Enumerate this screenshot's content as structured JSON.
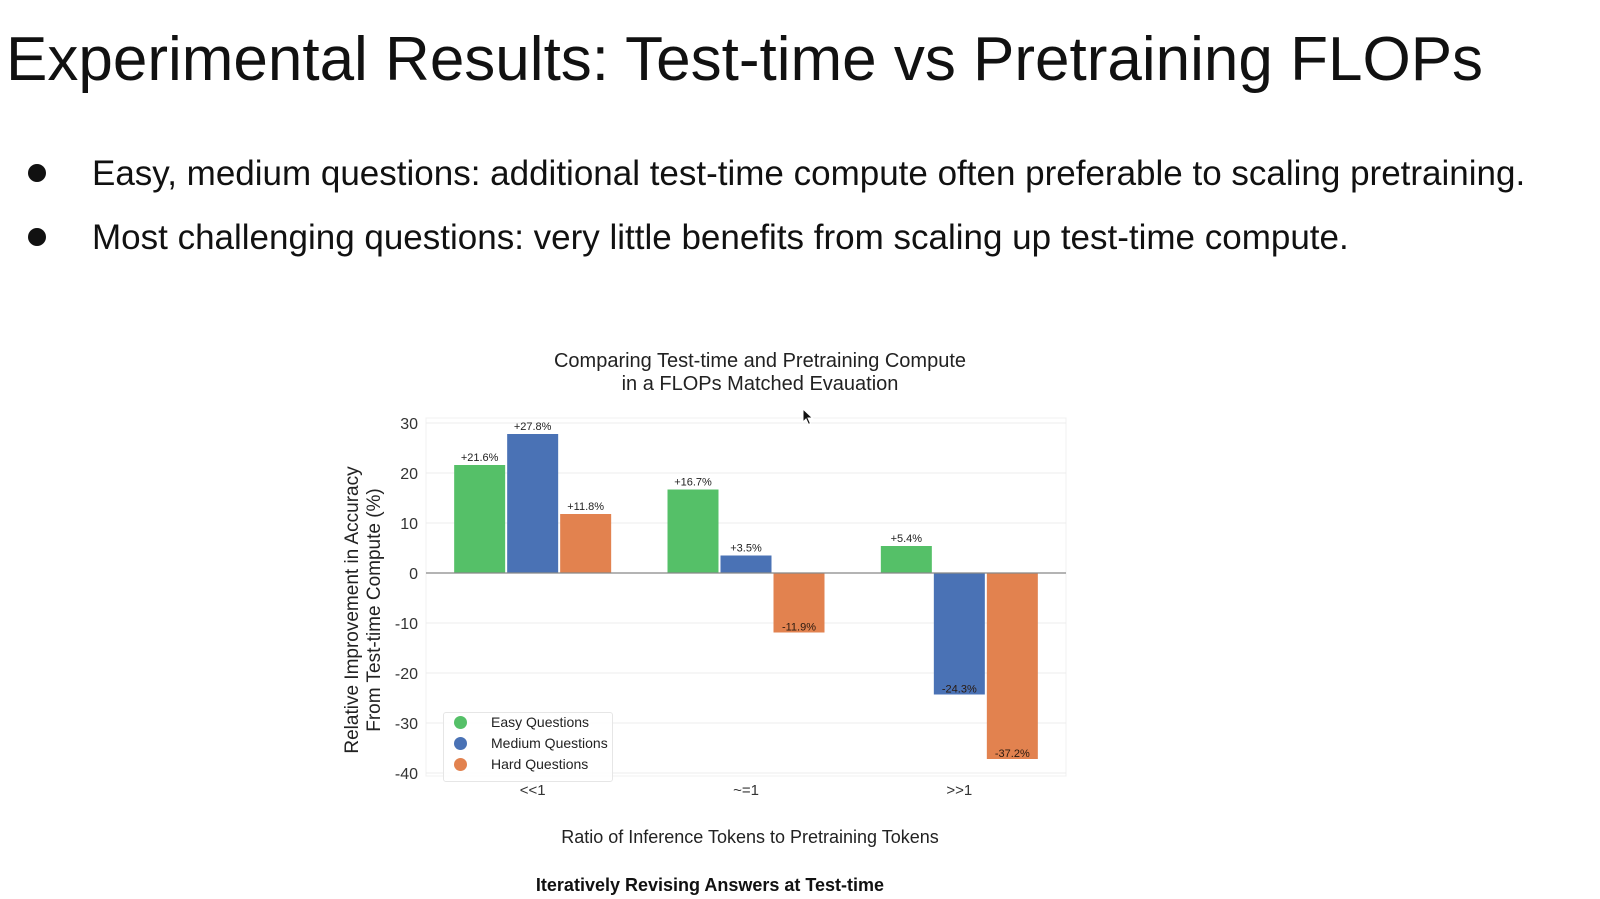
{
  "slide": {
    "title": "Experimental Results: Test-time vs Pretraining FLOPs",
    "bullets": [
      "Easy, medium questions: additional test-time compute often preferable to scaling pretraining.",
      "Most challenging questions: very little benefits from scaling up test-time compute."
    ],
    "caption": "Iteratively Revising Answers at Test-time"
  },
  "chart_data": {
    "type": "bar",
    "title": "Comparing Test-time and Pretraining Compute in a FLOPs Matched Evauation",
    "title_lines": [
      "Comparing Test-time and Pretraining Compute",
      "in a FLOPs Matched Evauation"
    ],
    "xlabel": "Ratio of Inference Tokens to Pretraining Tokens",
    "ylabel": "Relative Improvement in Accuracy From Test-time Compute (%)",
    "ylabel_lines": [
      "Relative Improvement in Accuracy",
      "From Test-time Compute (%)"
    ],
    "categories": [
      "<<1",
      "~=1",
      ">>1"
    ],
    "ylim": [
      -40,
      30
    ],
    "yticks": [
      30,
      20,
      10,
      0,
      -10,
      -20,
      -30,
      -40
    ],
    "grid": true,
    "legend_position": "lower-left",
    "series": [
      {
        "name": "Easy Questions",
        "color": "#55c068",
        "values": [
          21.6,
          16.7,
          5.4
        ],
        "labels": [
          "+21.6%",
          "+16.7%",
          "+5.4%"
        ]
      },
      {
        "name": "Medium Questions",
        "color": "#4a72b5",
        "values": [
          27.8,
          3.5,
          -24.3
        ],
        "labels": [
          "+27.8%",
          "+3.5%",
          "-24.3%"
        ]
      },
      {
        "name": "Hard Questions",
        "color": "#e2824f",
        "values": [
          11.8,
          -11.9,
          -37.2
        ],
        "labels": [
          "+11.8%",
          "-11.9%",
          "-37.2%"
        ]
      }
    ]
  }
}
